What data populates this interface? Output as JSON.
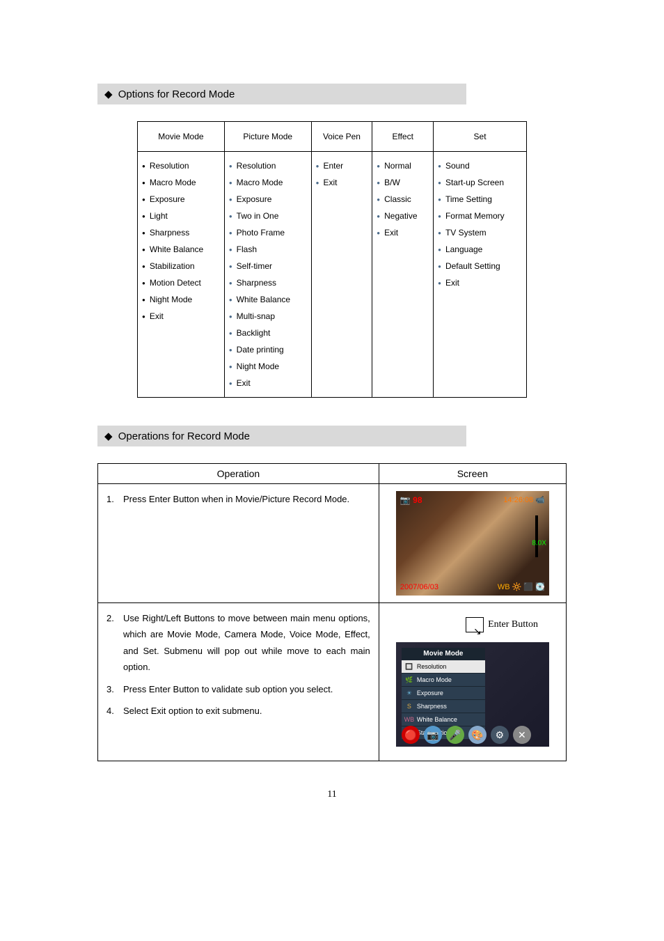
{
  "sections": {
    "options_title": "Options for Record Mode",
    "operations_title": "Operations for Record Mode"
  },
  "options_table": {
    "headers": {
      "movie": "Movie Mode",
      "picture": "Picture Mode",
      "voice": "Voice Pen",
      "effect": "Effect",
      "set": "Set"
    },
    "columns": {
      "movie": [
        "Resolution",
        "Macro Mode",
        "Exposure",
        "Light",
        "Sharpness",
        "White Balance",
        "Stabilization",
        "Motion Detect",
        "Night Mode",
        "Exit"
      ],
      "picture": [
        "Resolution",
        "Macro Mode",
        "Exposure",
        "Two in One",
        "Photo Frame",
        "Flash",
        "Self-timer",
        "Sharpness",
        "White Balance",
        "Multi-snap",
        "Backlight",
        "Date printing",
        "Night Mode",
        "Exit"
      ],
      "voice": [
        "Enter",
        "Exit"
      ],
      "effect": [
        "Normal",
        "B/W",
        "Classic",
        "Negative",
        "Exit"
      ],
      "set": [
        "Sound",
        "Start-up Screen",
        "Time Setting",
        "Format Memory",
        "TV System",
        "Language",
        "Default Setting",
        "Exit"
      ]
    }
  },
  "ops_table": {
    "headers": {
      "operation": "Operation",
      "screen": "Screen"
    },
    "row1": {
      "steps": [
        {
          "num": "1.",
          "text": "Press Enter Button when in Movie/Picture Record Mode."
        }
      ],
      "screen": {
        "top_left": "📷 98",
        "top_right": "14:26:08 📹",
        "bottom_left": "2007/06/03",
        "bottom_right": "WB 🔆 ⬛ 💽",
        "side": "8.0X"
      }
    },
    "row2": {
      "steps": [
        {
          "num": "2.",
          "text": "Use Right/Left Buttons to move between main menu options, which are Movie Mode, Camera Mode, Voice Mode, Effect, and Set. Submenu will pop out while move to each main option."
        },
        {
          "num": "3.",
          "text": "Press Enter Button to validate sub option you select."
        },
        {
          "num": "4.",
          "text": "Select Exit option to exit submenu."
        }
      ],
      "enter_label": "Enter Button",
      "menu": {
        "title": "Movie Mode",
        "items": [
          "Resolution",
          "Macro Mode",
          "Exposure",
          "Sharpness",
          "White Balance",
          "Stabilization"
        ]
      },
      "strip_colors": [
        "#cc0000",
        "#5599cc",
        "#66aa44",
        "#88aacc",
        "#445566",
        "#888888"
      ]
    }
  },
  "page_number": "11",
  "colors": {
    "header_bg": "#d9d9d9",
    "border": "#000000"
  }
}
